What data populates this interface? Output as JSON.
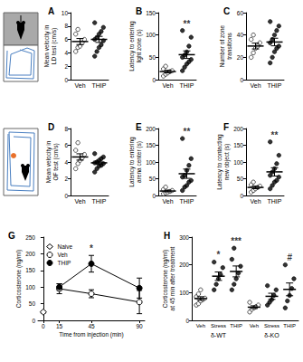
{
  "chart_data": [
    {
      "type": "dot",
      "title": "A",
      "ylabel": "Mean velocity in\nLD test (cm/s)",
      "categories": [
        "Veh",
        "THIP"
      ],
      "points": [
        [
          4.2,
          4.8,
          5.0,
          5.5,
          6.0,
          6.8,
          7.5
        ],
        [
          3.5,
          4.2,
          4.8,
          5.2,
          5.8,
          6.0,
          6.3,
          6.8,
          7.2,
          7.8,
          8.5
        ]
      ],
      "means": [
        5.69,
        6.01
      ],
      "errors": [
        0.45,
        0.45
      ],
      "colors": [
        "#ffffff",
        "#000000"
      ],
      "ylim": [
        0,
        10
      ],
      "yticks": [
        0,
        2,
        4,
        6,
        8,
        10
      ]
    },
    {
      "type": "dot",
      "title": "B",
      "ylabel": "Latency to entering\nlight zone (s)",
      "categories": [
        "Veh",
        "THIP"
      ],
      "points": [
        [
          8,
          12,
          15,
          18,
          20,
          24,
          30
        ],
        [
          20,
          28,
          35,
          40,
          45,
          50,
          55,
          62,
          75,
          95,
          110
        ]
      ],
      "means": [
        18.1,
        55.9
      ],
      "errors": [
        2.8,
        8.5
      ],
      "colors": [
        "#ffffff",
        "#000000"
      ],
      "ylim": [
        0,
        150
      ],
      "yticks": [
        0,
        50,
        100,
        150
      ],
      "annotations": [
        {
          "text": "**",
          "category": 1
        }
      ]
    },
    {
      "type": "dot",
      "title": "C",
      "ylabel": "Number of zone\ntransitions",
      "categories": [
        "Veh",
        "THIP"
      ],
      "points": [
        [
          20,
          24,
          28,
          30,
          33,
          36,
          40
        ],
        [
          15,
          20,
          25,
          28,
          30,
          33,
          36,
          40,
          44,
          48,
          52
        ]
      ],
      "means": [
        30.1,
        33.7
      ],
      "errors": [
        2.6,
        3.4
      ],
      "colors": [
        "#ffffff",
        "#000000"
      ],
      "ylim": [
        0,
        60
      ],
      "yticks": [
        0,
        20,
        40,
        60
      ]
    },
    {
      "type": "dot",
      "title": "D",
      "ylabel": "Mean velocity in\nOF test (cm/s)",
      "categories": [
        "Veh",
        "THIP"
      ],
      "points": [
        [
          3.2,
          3.8,
          4.2,
          4.5,
          4.9,
          5.4,
          6.3
        ],
        [
          2.8,
          3.2,
          3.5,
          3.6,
          3.8,
          3.9,
          4.0,
          4.2,
          4.4,
          4.6,
          5.0
        ]
      ],
      "means": [
        4.6,
        3.9
      ],
      "errors": [
        0.38,
        0.19
      ],
      "colors": [
        "#ffffff",
        "#000000"
      ],
      "ylim": [
        0,
        8
      ],
      "yticks": [
        0,
        2,
        4,
        6,
        8
      ]
    },
    {
      "type": "dot",
      "title": "E",
      "ylabel": "Latency to entering\narena center (s)",
      "categories": [
        "Veh",
        "THIP"
      ],
      "points": [
        [
          5,
          8,
          10,
          12,
          15,
          18,
          25
        ],
        [
          15,
          25,
          30,
          40,
          45,
          55,
          60,
          75,
          90,
          110,
          170
        ]
      ],
      "means": [
        13.3,
        65.0
      ],
      "errors": [
        2.5,
        13.8
      ],
      "colors": [
        "#ffffff",
        "#000000"
      ],
      "ylim": [
        0,
        200
      ],
      "yticks": [
        0,
        50,
        100,
        150,
        200
      ],
      "annotations": [
        {
          "text": "**",
          "category": 1
        }
      ]
    },
    {
      "type": "dot",
      "title": "F",
      "ylabel": "Latency to contacting\nnew object (s)",
      "categories": [
        "Veh",
        "THIP"
      ],
      "points": [
        [
          10,
          15,
          20,
          24,
          28,
          32,
          40
        ],
        [
          20,
          30,
          40,
          45,
          55,
          60,
          70,
          80,
          95,
          120,
          160
        ]
      ],
      "means": [
        24.1,
        70.5
      ],
      "errors": [
        3.8,
        12.4
      ],
      "colors": [
        "#ffffff",
        "#000000"
      ],
      "ylim": [
        0,
        200
      ],
      "yticks": [
        0,
        50,
        100,
        150,
        200
      ],
      "annotations": [
        {
          "text": "**",
          "category": 1
        }
      ]
    },
    {
      "type": "line",
      "title": "G",
      "ylabel": "Corticosterone (ng/ml)",
      "xlabel": "Time from injection (min)",
      "series": [
        {
          "name": "Naive",
          "marker": "diamond",
          "color": "#ffffff",
          "x": [
            0
          ],
          "values": [
            25
          ],
          "errors": [
            3
          ]
        },
        {
          "name": "Veh",
          "marker": "circle",
          "color": "#ffffff",
          "x": [
            15,
            45,
            90
          ],
          "values": [
            95,
            80,
            55
          ],
          "errors": [
            15,
            12,
            35
          ]
        },
        {
          "name": "THIP",
          "marker": "circle",
          "color": "#000000",
          "x": [
            15,
            45,
            90
          ],
          "values": [
            100,
            170,
            97
          ],
          "errors": [
            10,
            25,
            30
          ]
        }
      ],
      "xlim": [
        -5,
        95
      ],
      "xticks": [
        0,
        15,
        45,
        90
      ],
      "ylim": [
        0,
        250
      ],
      "yticks": [
        0,
        50,
        100,
        150,
        200,
        250
      ],
      "legend": "upper left",
      "annotations": [
        {
          "text": "*",
          "x": 45
        }
      ]
    },
    {
      "type": "dot",
      "title": "H",
      "ylabel": "Corticosterone (ng/ml)\nat 45 min after treatment",
      "categories": [
        "Veh",
        "Stress",
        "THIP",
        "Veh",
        "Stress",
        "THIP"
      ],
      "groups": [
        {
          "label": "δ-WT",
          "span": 3
        },
        {
          "label": "δ-KO",
          "span": 3
        }
      ],
      "points": [
        [
          55,
          60,
          70,
          75,
          80,
          85,
          95,
          110
        ],
        [
          110,
          130,
          150,
          165,
          190,
          210
        ],
        [
          110,
          130,
          150,
          170,
          195,
          220,
          260
        ],
        [
          30,
          40,
          45,
          50,
          55,
          65
        ],
        [
          55,
          65,
          75,
          90,
          110,
          125
        ],
        [
          45,
          70,
          90,
          115,
          150,
          200
        ]
      ],
      "means": [
        78.8,
        159.2,
        176.4,
        47.5,
        86.7,
        111.7
      ],
      "errors": [
        6.4,
        15.2,
        19.6,
        4.9,
        11.0,
        23.0
      ],
      "colors": [
        "#ffffff",
        "#000000",
        "#000000",
        "#ffffff",
        "#000000",
        "#000000"
      ],
      "ylim": [
        0,
        300
      ],
      "yticks": [
        0,
        100,
        200,
        300
      ],
      "annotations": [
        {
          "text": "*",
          "category": 1
        },
        {
          "text": "***",
          "category": 2
        },
        {
          "text": "#",
          "category": 5
        }
      ]
    }
  ]
}
